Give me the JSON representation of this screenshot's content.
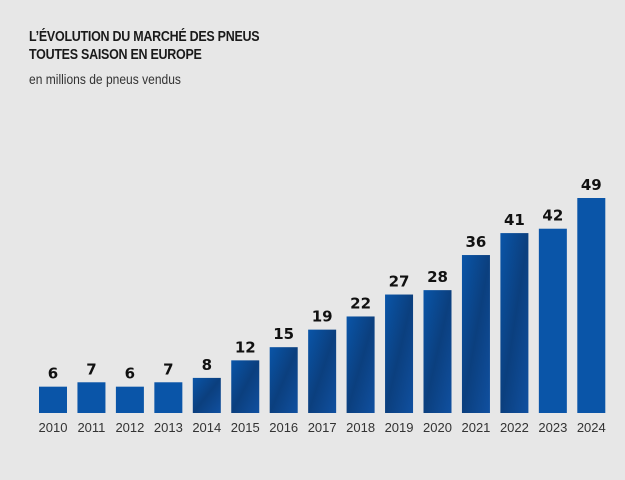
{
  "chart_data": {
    "type": "bar",
    "title_lines": [
      "L’ÉVOLUTION DU MARCHÉ DES PNEUS",
      "TOUTES SAISON EN EUROPE"
    ],
    "subtitle": "en millions de pneus vendus",
    "xlabel": "",
    "ylabel": "",
    "categories": [
      "2010",
      "2011",
      "2012",
      "2013",
      "2014",
      "2015",
      "2016",
      "2017",
      "2018",
      "2019",
      "2020",
      "2021",
      "2022",
      "2023",
      "2024"
    ],
    "values": [
      6,
      7,
      6,
      7,
      8,
      12,
      15,
      19,
      22,
      27,
      28,
      36,
      41,
      42,
      49
    ],
    "value_labels": [
      "6",
      "7",
      "6",
      "7",
      "8",
      "12",
      "15",
      "19",
      "22",
      "27",
      "28",
      "36",
      "41",
      "42",
      "49"
    ],
    "ylim": [
      0,
      49
    ],
    "grid": false,
    "legend": "none",
    "colors": {
      "bar": "#0a55a8",
      "bar_dark": "#0b3f7e",
      "background": "#e7e7e7"
    }
  }
}
